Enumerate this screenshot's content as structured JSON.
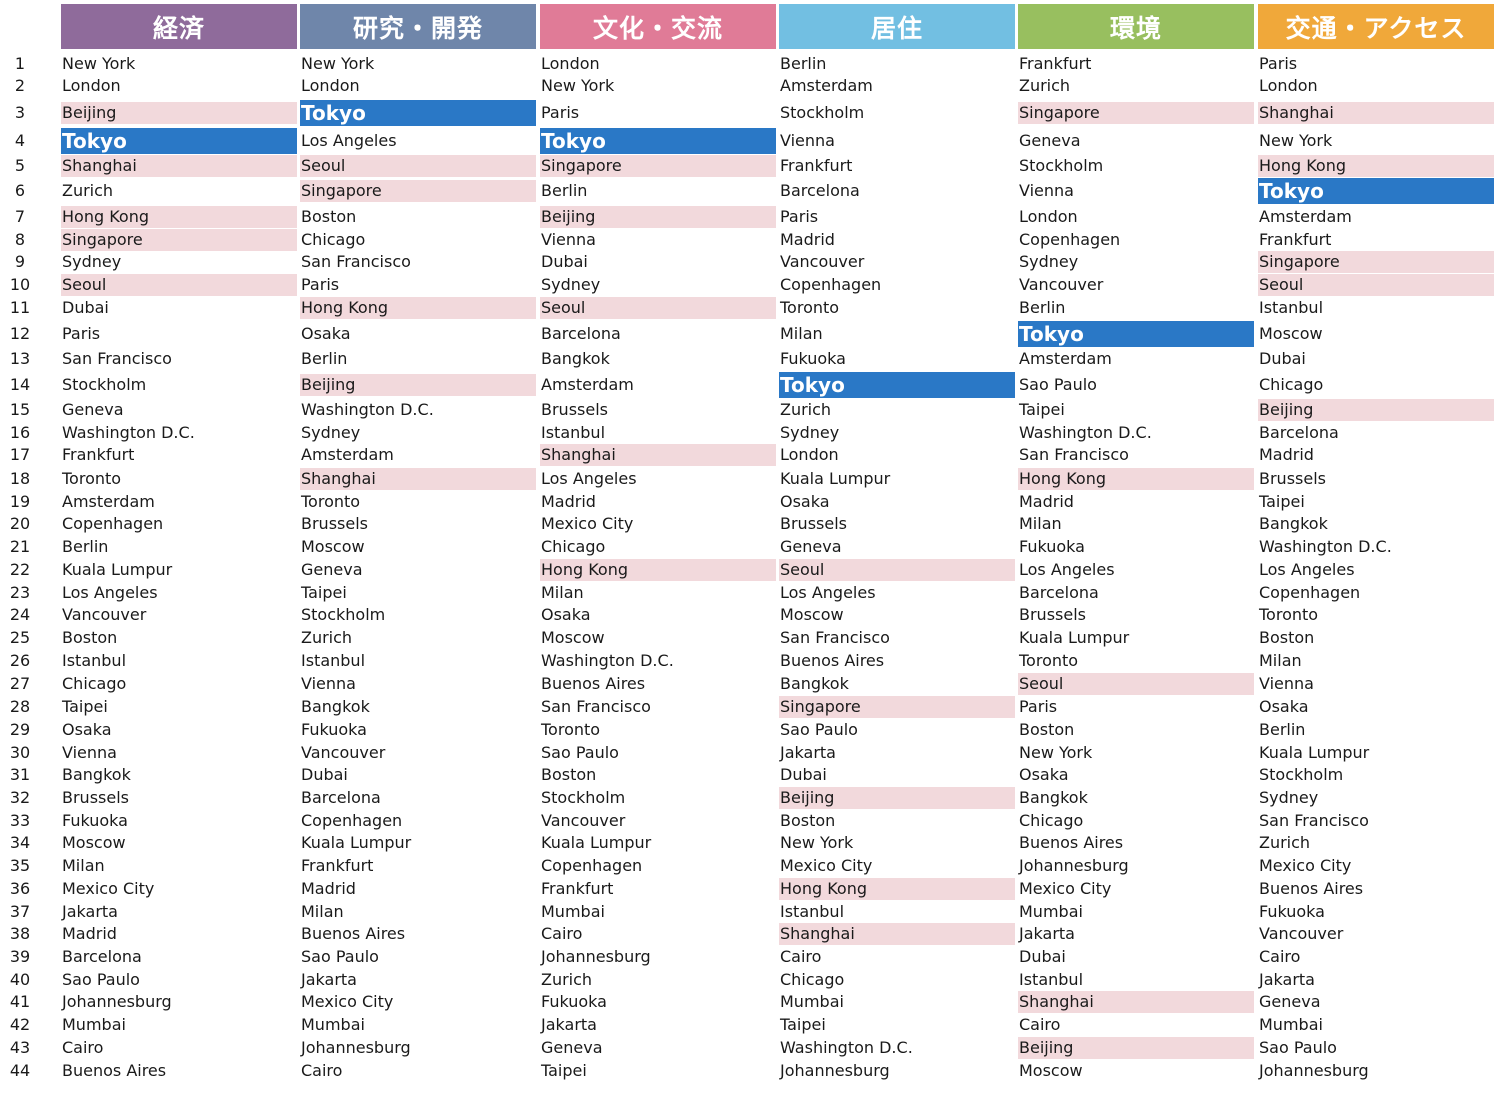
{
  "colors": {
    "header_economy": "#8f6b9b",
    "header_rd": "#6f86aa",
    "header_culture": "#e07b97",
    "header_livability": "#72bfe2",
    "header_environment": "#98bf5f",
    "header_access": "#f0a83a",
    "highlight_asia": "#f2d9dc",
    "highlight_tokyo": "#2a78c6"
  },
  "headers": [
    "経済",
    "研究・開発",
    "文化・交流",
    "居住",
    "環境",
    "交通・アクセス"
  ],
  "ranks": [
    "1",
    "2",
    "3",
    "4",
    "5",
    "6",
    "7",
    "8",
    "9",
    "10",
    "11",
    "12",
    "13",
    "14",
    "15",
    "16",
    "17",
    "18",
    "19",
    "20",
    "21",
    "22",
    "23",
    "24",
    "25",
    "26",
    "27",
    "28",
    "29",
    "30",
    "31",
    "32",
    "33",
    "34",
    "35",
    "36",
    "37",
    "38",
    "39",
    "40",
    "41",
    "42",
    "43",
    "44"
  ],
  "columns": [
    [
      "New York",
      "London",
      "Beijing",
      "Tokyo",
      "Shanghai",
      "Zurich",
      "Hong Kong",
      "Singapore",
      "Sydney",
      "Seoul",
      "Dubai",
      "Paris",
      "San Francisco",
      "Stockholm",
      "Geneva",
      "Washington D.C.",
      "Frankfurt",
      "Toronto",
      "Amsterdam",
      "Copenhagen",
      "Berlin",
      "Kuala Lumpur",
      "Los Angeles",
      "Vancouver",
      "Boston",
      "Istanbul",
      "Chicago",
      "Taipei",
      "Osaka",
      "Vienna",
      "Bangkok",
      "Brussels",
      "Fukuoka",
      "Moscow",
      "Milan",
      "Mexico City",
      "Jakarta",
      "Madrid",
      "Barcelona",
      "Sao Paulo",
      "Johannesburg",
      "Mumbai",
      "Cairo",
      "Buenos Aires"
    ],
    [
      "New York",
      "London",
      "Tokyo",
      "Los Angeles",
      "Seoul",
      "Singapore",
      "Boston",
      "Chicago",
      "San Francisco",
      "Paris",
      "Hong Kong",
      "Osaka",
      "Berlin",
      "Beijing",
      "Washington D.C.",
      "Sydney",
      "Amsterdam",
      "Shanghai",
      "Toronto",
      "Brussels",
      "Moscow",
      "Geneva",
      "Taipei",
      "Stockholm",
      "Zurich",
      "Istanbul",
      "Vienna",
      "Bangkok",
      "Fukuoka",
      "Vancouver",
      "Dubai",
      "Barcelona",
      "Copenhagen",
      "Kuala Lumpur",
      "Frankfurt",
      "Madrid",
      "Milan",
      "Buenos Aires",
      "Sao Paulo",
      "Jakarta",
      "Mexico City",
      "Mumbai",
      "Johannesburg",
      "Cairo"
    ],
    [
      "London",
      "New York",
      "Paris",
      "Tokyo",
      "Singapore",
      "Berlin",
      "Beijing",
      "Vienna",
      "Dubai",
      "Sydney",
      "Seoul",
      "Barcelona",
      "Bangkok",
      "Amsterdam",
      "Brussels",
      "Istanbul",
      "Shanghai",
      "Los Angeles",
      "Madrid",
      "Mexico City",
      "Chicago",
      "Hong Kong",
      "Milan",
      "Osaka",
      "Moscow",
      "Washington D.C.",
      "Buenos Aires",
      "San Francisco",
      "Toronto",
      "Sao Paulo",
      "Boston",
      "Stockholm",
      "Vancouver",
      "Kuala Lumpur",
      "Copenhagen",
      "Frankfurt",
      "Mumbai",
      "Cairo",
      "Johannesburg",
      "Zurich",
      "Fukuoka",
      "Jakarta",
      "Geneva",
      "Taipei"
    ],
    [
      "Berlin",
      "Amsterdam",
      "Stockholm",
      "Vienna",
      "Frankfurt",
      "Barcelona",
      "Paris",
      "Madrid",
      "Vancouver",
      "Copenhagen",
      "Toronto",
      "Milan",
      "Fukuoka",
      "Tokyo",
      "Zurich",
      "Sydney",
      "London",
      "Kuala Lumpur",
      "Osaka",
      "Brussels",
      "Geneva",
      "Seoul",
      "Los Angeles",
      "Moscow",
      "San Francisco",
      "Buenos Aires",
      "Bangkok",
      "Singapore",
      "Sao Paulo",
      "Jakarta",
      "Dubai",
      "Beijing",
      "Boston",
      "New York",
      "Mexico City",
      "Hong Kong",
      "Istanbul",
      "Shanghai",
      "Cairo",
      "Chicago",
      "Mumbai",
      "Taipei",
      "Washington D.C.",
      "Johannesburg"
    ],
    [
      "Frankfurt",
      "Zurich",
      "Singapore",
      "Geneva",
      "Stockholm",
      "Vienna",
      "London",
      "Copenhagen",
      "Sydney",
      "Vancouver",
      "Berlin",
      "Tokyo",
      "Amsterdam",
      "Sao Paulo",
      "Taipei",
      "Washington D.C.",
      "San Francisco",
      "Hong Kong",
      "Madrid",
      "Milan",
      "Fukuoka",
      "Los Angeles",
      "Barcelona",
      "Brussels",
      "Kuala Lumpur",
      "Toronto",
      "Seoul",
      "Paris",
      "Boston",
      "New York",
      "Osaka",
      "Bangkok",
      "Chicago",
      "Buenos Aires",
      "Johannesburg",
      "Mexico City",
      "Mumbai",
      "Jakarta",
      "Dubai",
      "Istanbul",
      "Shanghai",
      "Cairo",
      "Beijing",
      "Moscow"
    ],
    [
      "Paris",
      "London",
      "Shanghai",
      "New York",
      "Hong Kong",
      "Tokyo",
      "Amsterdam",
      "Frankfurt",
      "Singapore",
      "Seoul",
      "Istanbul",
      "Moscow",
      "Dubai",
      "Chicago",
      "Beijing",
      "Barcelona",
      "Madrid",
      "Brussels",
      "Taipei",
      "Bangkok",
      "Washington D.C.",
      "Los Angeles",
      "Copenhagen",
      "Toronto",
      "Boston",
      "Milan",
      "Vienna",
      "Osaka",
      "Berlin",
      "Kuala Lumpur",
      "Stockholm",
      "Sydney",
      "San Francisco",
      "Zurich",
      "Mexico City",
      "Buenos Aires",
      "Fukuoka",
      "Vancouver",
      "Cairo",
      "Jakarta",
      "Geneva",
      "Mumbai",
      "Sao Paulo",
      "Johannesburg"
    ]
  ]
}
